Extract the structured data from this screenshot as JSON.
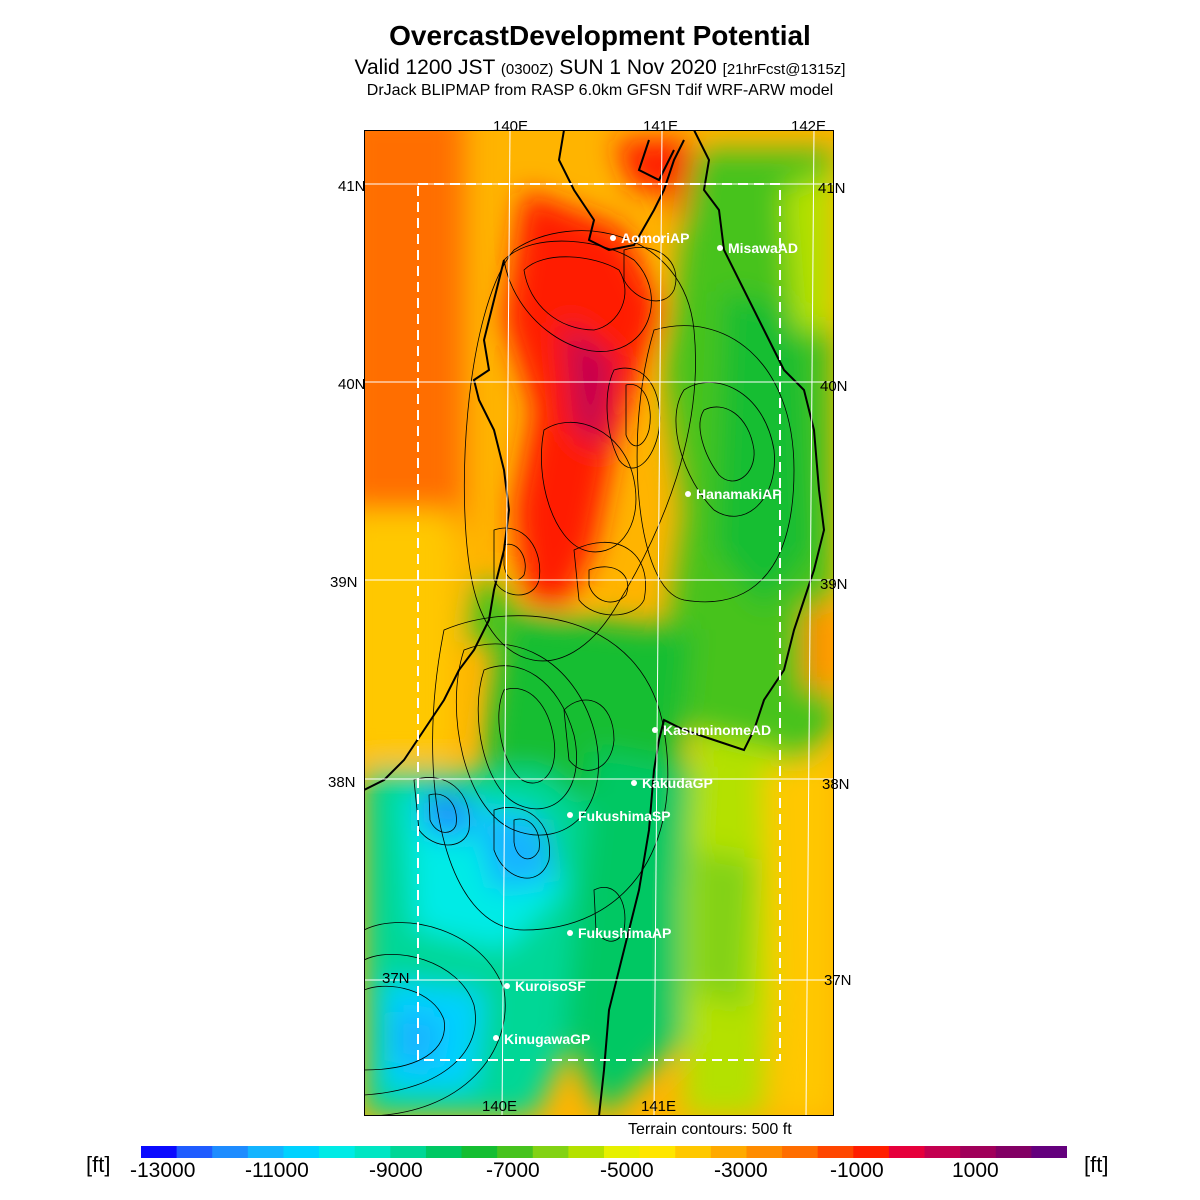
{
  "header": {
    "title": "OvercastDevelopment Potential",
    "valid_prefix": "Valid 1200 JST",
    "valid_utc": "(0300Z)",
    "valid_date": "SUN 1 Nov 2020",
    "forecast": "[21hrFcst@1315z]",
    "model_line": "DrJack BLIPMAP from RASP 6.0km GFSN Tdif WRF-ARW model"
  },
  "map": {
    "lon_labels": [
      "140E",
      "141E",
      "142E"
    ],
    "lat_labels": [
      "41N",
      "40N",
      "39N",
      "38N",
      "37N"
    ],
    "stations": [
      "AomoriAP",
      "MisawaAD",
      "HanamakiAP",
      "KasuminomeAD",
      "KakudaGP",
      "FukushimaSP",
      "FukushimaAP",
      "KuroisoSF",
      "KinugawaGP"
    ],
    "terrain_note": "Terrain contours: 500 ft"
  },
  "colorbar": {
    "unit": "[ft]",
    "ticks": [
      "-13000",
      "-11000",
      "-9000",
      "-7000",
      "-5000",
      "-3000",
      "-1000",
      "1000"
    ],
    "colors": [
      "#0a0aff",
      "#1f5cff",
      "#1e8cff",
      "#14b4ff",
      "#00d2ff",
      "#00ebe6",
      "#00e6c3",
      "#00d796",
      "#00c864",
      "#14be32",
      "#46c31e",
      "#82d214",
      "#b4e100",
      "#e6f000",
      "#ffe600",
      "#ffc800",
      "#ffaa00",
      "#ff8c00",
      "#ff6e00",
      "#ff4600",
      "#ff1e00",
      "#e6003c",
      "#c30050",
      "#a0005a",
      "#820064",
      "#64007d"
    ]
  }
}
